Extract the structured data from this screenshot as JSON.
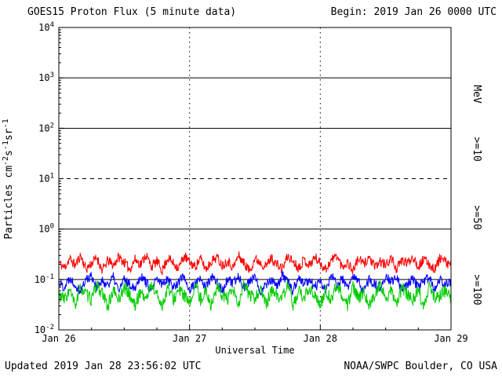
{
  "header": {
    "title": "GOES15 Proton Flux (5 minute data)",
    "begin": "Begin: 2019 Jan 26 0000 UTC"
  },
  "footer": {
    "updated": "Updated 2019 Jan 28 23:56:02 UTC",
    "credit": "NOAA/SWPC Boulder, CO USA"
  },
  "colors": {
    "red": "#ff0000",
    "blue": "#0000ff",
    "green": "#00cc00",
    "axis": "#000000",
    "background": "#ffffff"
  },
  "x_axis": {
    "title": "Universal Time",
    "tick_labels": [
      "Jan 26",
      "Jan 27",
      "Jan 28",
      "Jan 29"
    ]
  },
  "y_axis": {
    "title_parts": [
      {
        "t": "Particles cm"
      },
      {
        "t": "-2",
        "sup": true
      },
      {
        "t": "s"
      },
      {
        "t": "-1",
        "sup": true
      },
      {
        "t": "sr"
      },
      {
        "t": "-1",
        "sup": true
      }
    ],
    "tick_exponents": [
      4,
      3,
      2,
      1,
      0,
      -1,
      -2
    ]
  },
  "right_axis": {
    "unit": "MeV",
    "labels": [
      {
        "text": ">=10",
        "color": "#ff0000"
      },
      {
        "text": ">=50",
        "color": "#0000ff"
      },
      {
        "text": ">=100",
        "color": "#00cc00"
      }
    ]
  },
  "chart_data": {
    "type": "line",
    "title": "GOES15 Proton Flux (5 minute data)",
    "xlabel": "Universal Time",
    "ylabel": "Particles cm^-2 s^-1 sr^-1",
    "y_scale": "log",
    "ylim": [
      0.01,
      10000
    ],
    "x_ticks": [
      "Jan 26",
      "Jan 27",
      "Jan 28",
      "Jan 29"
    ],
    "x_span_days": 3,
    "grid": {
      "horizontal": "solid-per-decade",
      "vertical": "dotted-at-day-boundaries"
    },
    "event_threshold": {
      "value": 10,
      "style": "dashed"
    },
    "legend_position": "right-rotated",
    "series": [
      {
        "name": ">=10 MeV",
        "color": "#ff0000",
        "seed": 11,
        "jitter_dex": 0.1,
        "values": [
          0.22,
          0.17,
          0.26,
          0.19,
          0.3,
          0.16,
          0.21,
          0.27,
          0.15,
          0.24,
          0.19,
          0.28,
          0.22,
          0.16,
          0.25,
          0.2,
          0.31,
          0.18,
          0.23,
          0.15,
          0.27,
          0.21,
          0.17,
          0.29,
          0.22,
          0.18,
          0.26,
          0.16,
          0.23,
          0.28,
          0.19,
          0.24,
          0.17,
          0.3,
          0.21,
          0.15,
          0.26,
          0.22,
          0.18,
          0.27,
          0.2,
          0.16,
          0.29,
          0.23,
          0.17,
          0.25,
          0.19,
          0.28,
          0.21,
          0.16,
          0.24,
          0.3,
          0.18,
          0.22,
          0.15,
          0.26,
          0.2,
          0.28,
          0.17,
          0.23,
          0.19,
          0.27,
          0.16,
          0.24,
          0.21,
          0.29,
          0.18,
          0.25,
          0.2,
          0.16,
          0.27,
          0.22,
          0.19
        ]
      },
      {
        "name": ">=50 MeV",
        "color": "#0000ff",
        "seed": 22,
        "jitter_dex": 0.1,
        "values": [
          0.09,
          0.07,
          0.11,
          0.08,
          0.06,
          0.1,
          0.12,
          0.07,
          0.09,
          0.08,
          0.11,
          0.06,
          0.1,
          0.08,
          0.07,
          0.12,
          0.09,
          0.06,
          0.1,
          0.08,
          0.11,
          0.07,
          0.09,
          0.12,
          0.06,
          0.08,
          0.1,
          0.07,
          0.11,
          0.09,
          0.06,
          0.1,
          0.08,
          0.12,
          0.07,
          0.09,
          0.11,
          0.06,
          0.08,
          0.1,
          0.07,
          0.12,
          0.09,
          0.06,
          0.11,
          0.08,
          0.1,
          0.07,
          0.09,
          0.06,
          0.12,
          0.08,
          0.1,
          0.07,
          0.11,
          0.09,
          0.06,
          0.1,
          0.08,
          0.07,
          0.12,
          0.09,
          0.11,
          0.06,
          0.08,
          0.1,
          0.07,
          0.09,
          0.11,
          0.06,
          0.1,
          0.08,
          0.09
        ]
      },
      {
        "name": ">=100 MeV",
        "color": "#00cc00",
        "seed": 33,
        "jitter_dex": 0.13,
        "values": [
          0.05,
          0.04,
          0.06,
          0.03,
          0.07,
          0.05,
          0.04,
          0.08,
          0.05,
          0.03,
          0.06,
          0.04,
          0.07,
          0.05,
          0.03,
          0.06,
          0.04,
          0.08,
          0.05,
          0.03,
          0.07,
          0.04,
          0.06,
          0.05,
          0.03,
          0.08,
          0.04,
          0.06,
          0.03,
          0.07,
          0.05,
          0.04,
          0.06,
          0.03,
          0.08,
          0.05,
          0.04,
          0.07,
          0.03,
          0.06,
          0.05,
          0.04,
          0.08,
          0.03,
          0.06,
          0.04,
          0.07,
          0.05,
          0.03,
          0.06,
          0.04,
          0.08,
          0.05,
          0.03,
          0.07,
          0.04,
          0.06,
          0.03,
          0.05,
          0.08,
          0.04,
          0.06,
          0.03,
          0.07,
          0.05,
          0.04,
          0.06,
          0.03,
          0.08,
          0.04,
          0.05,
          0.06,
          0.04
        ]
      }
    ]
  }
}
